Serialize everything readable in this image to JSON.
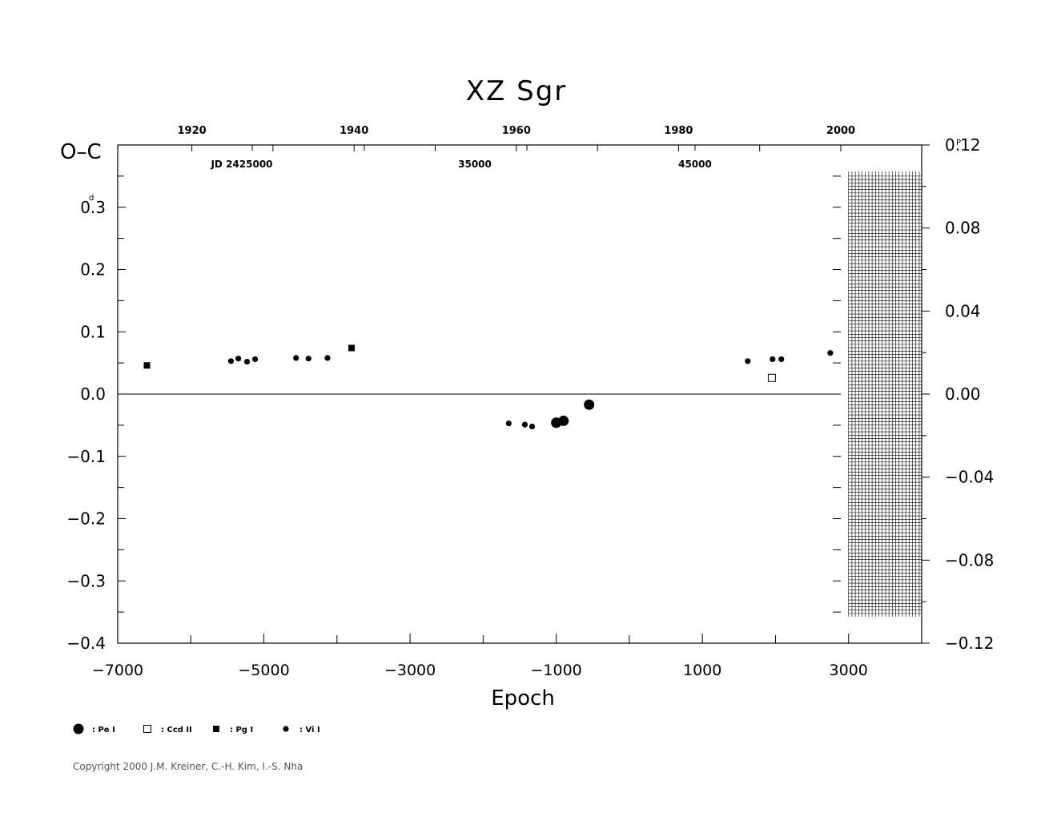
{
  "chart_data": {
    "type": "scatter",
    "title": "XZ  Sgr",
    "xlabel": "Epoch",
    "ylabel": "O-C",
    "ylabel_unit": "d",
    "y2label_unit": "P",
    "xlim": [
      -7000,
      4000
    ],
    "ylim": [
      -0.4,
      0.4
    ],
    "y2lim": [
      -0.12,
      0.12
    ],
    "x_ticks": [
      "-7000",
      "-5000",
      "-3000",
      "-1000",
      "1000",
      "3000"
    ],
    "y_ticks": [
      "-0.4",
      "-0.3",
      "-0.2",
      "-0.1",
      "0.0",
      "0.1",
      "0.2",
      "0.3"
    ],
    "y2_ticks": [
      "-0.12",
      "-0.08",
      "-0.04",
      "0.00",
      "0.04",
      "0.08",
      "0.12"
    ],
    "top_year_ticks": [
      "1920",
      "1940",
      "1960",
      "1980",
      "2000"
    ],
    "top_jd_labels": [
      "JD  2425000",
      "35000",
      "45000"
    ],
    "grid": false,
    "hatched_region": {
      "x_from": 3000,
      "x_to": 4000,
      "y_from": -0.355,
      "y_to": 0.35
    },
    "legend_position": "bottom-left",
    "series": [
      {
        "name": "Pe I",
        "marker": "large-filled-circle",
        "points": [
          [
            -1000,
            -0.046
          ],
          [
            -900,
            -0.043
          ],
          [
            -550,
            -0.017
          ]
        ]
      },
      {
        "name": "Ccd II",
        "marker": "open-square",
        "points": [
          [
            1950,
            0.026
          ]
        ]
      },
      {
        "name": "Pg I",
        "marker": "filled-square",
        "points": [
          [
            -6600,
            0.046
          ],
          [
            -3800,
            0.074
          ]
        ]
      },
      {
        "name": "Vi I",
        "marker": "small-filled-circle",
        "points": [
          [
            -5450,
            0.053
          ],
          [
            -5350,
            0.057
          ],
          [
            -5230,
            0.052
          ],
          [
            -5120,
            0.056
          ],
          [
            -4560,
            0.058
          ],
          [
            -4390,
            0.057
          ],
          [
            -4130,
            0.058
          ],
          [
            -1650,
            -0.047
          ],
          [
            -1430,
            -0.049
          ],
          [
            -1330,
            -0.052
          ],
          [
            1620,
            0.053
          ],
          [
            1960,
            0.056
          ],
          [
            2080,
            0.056
          ],
          [
            2750,
            0.066
          ]
        ]
      }
    ]
  },
  "copyright": "Copyright 2000 J.M. Kreiner, C.-H. Kim, I.-S. Nha"
}
